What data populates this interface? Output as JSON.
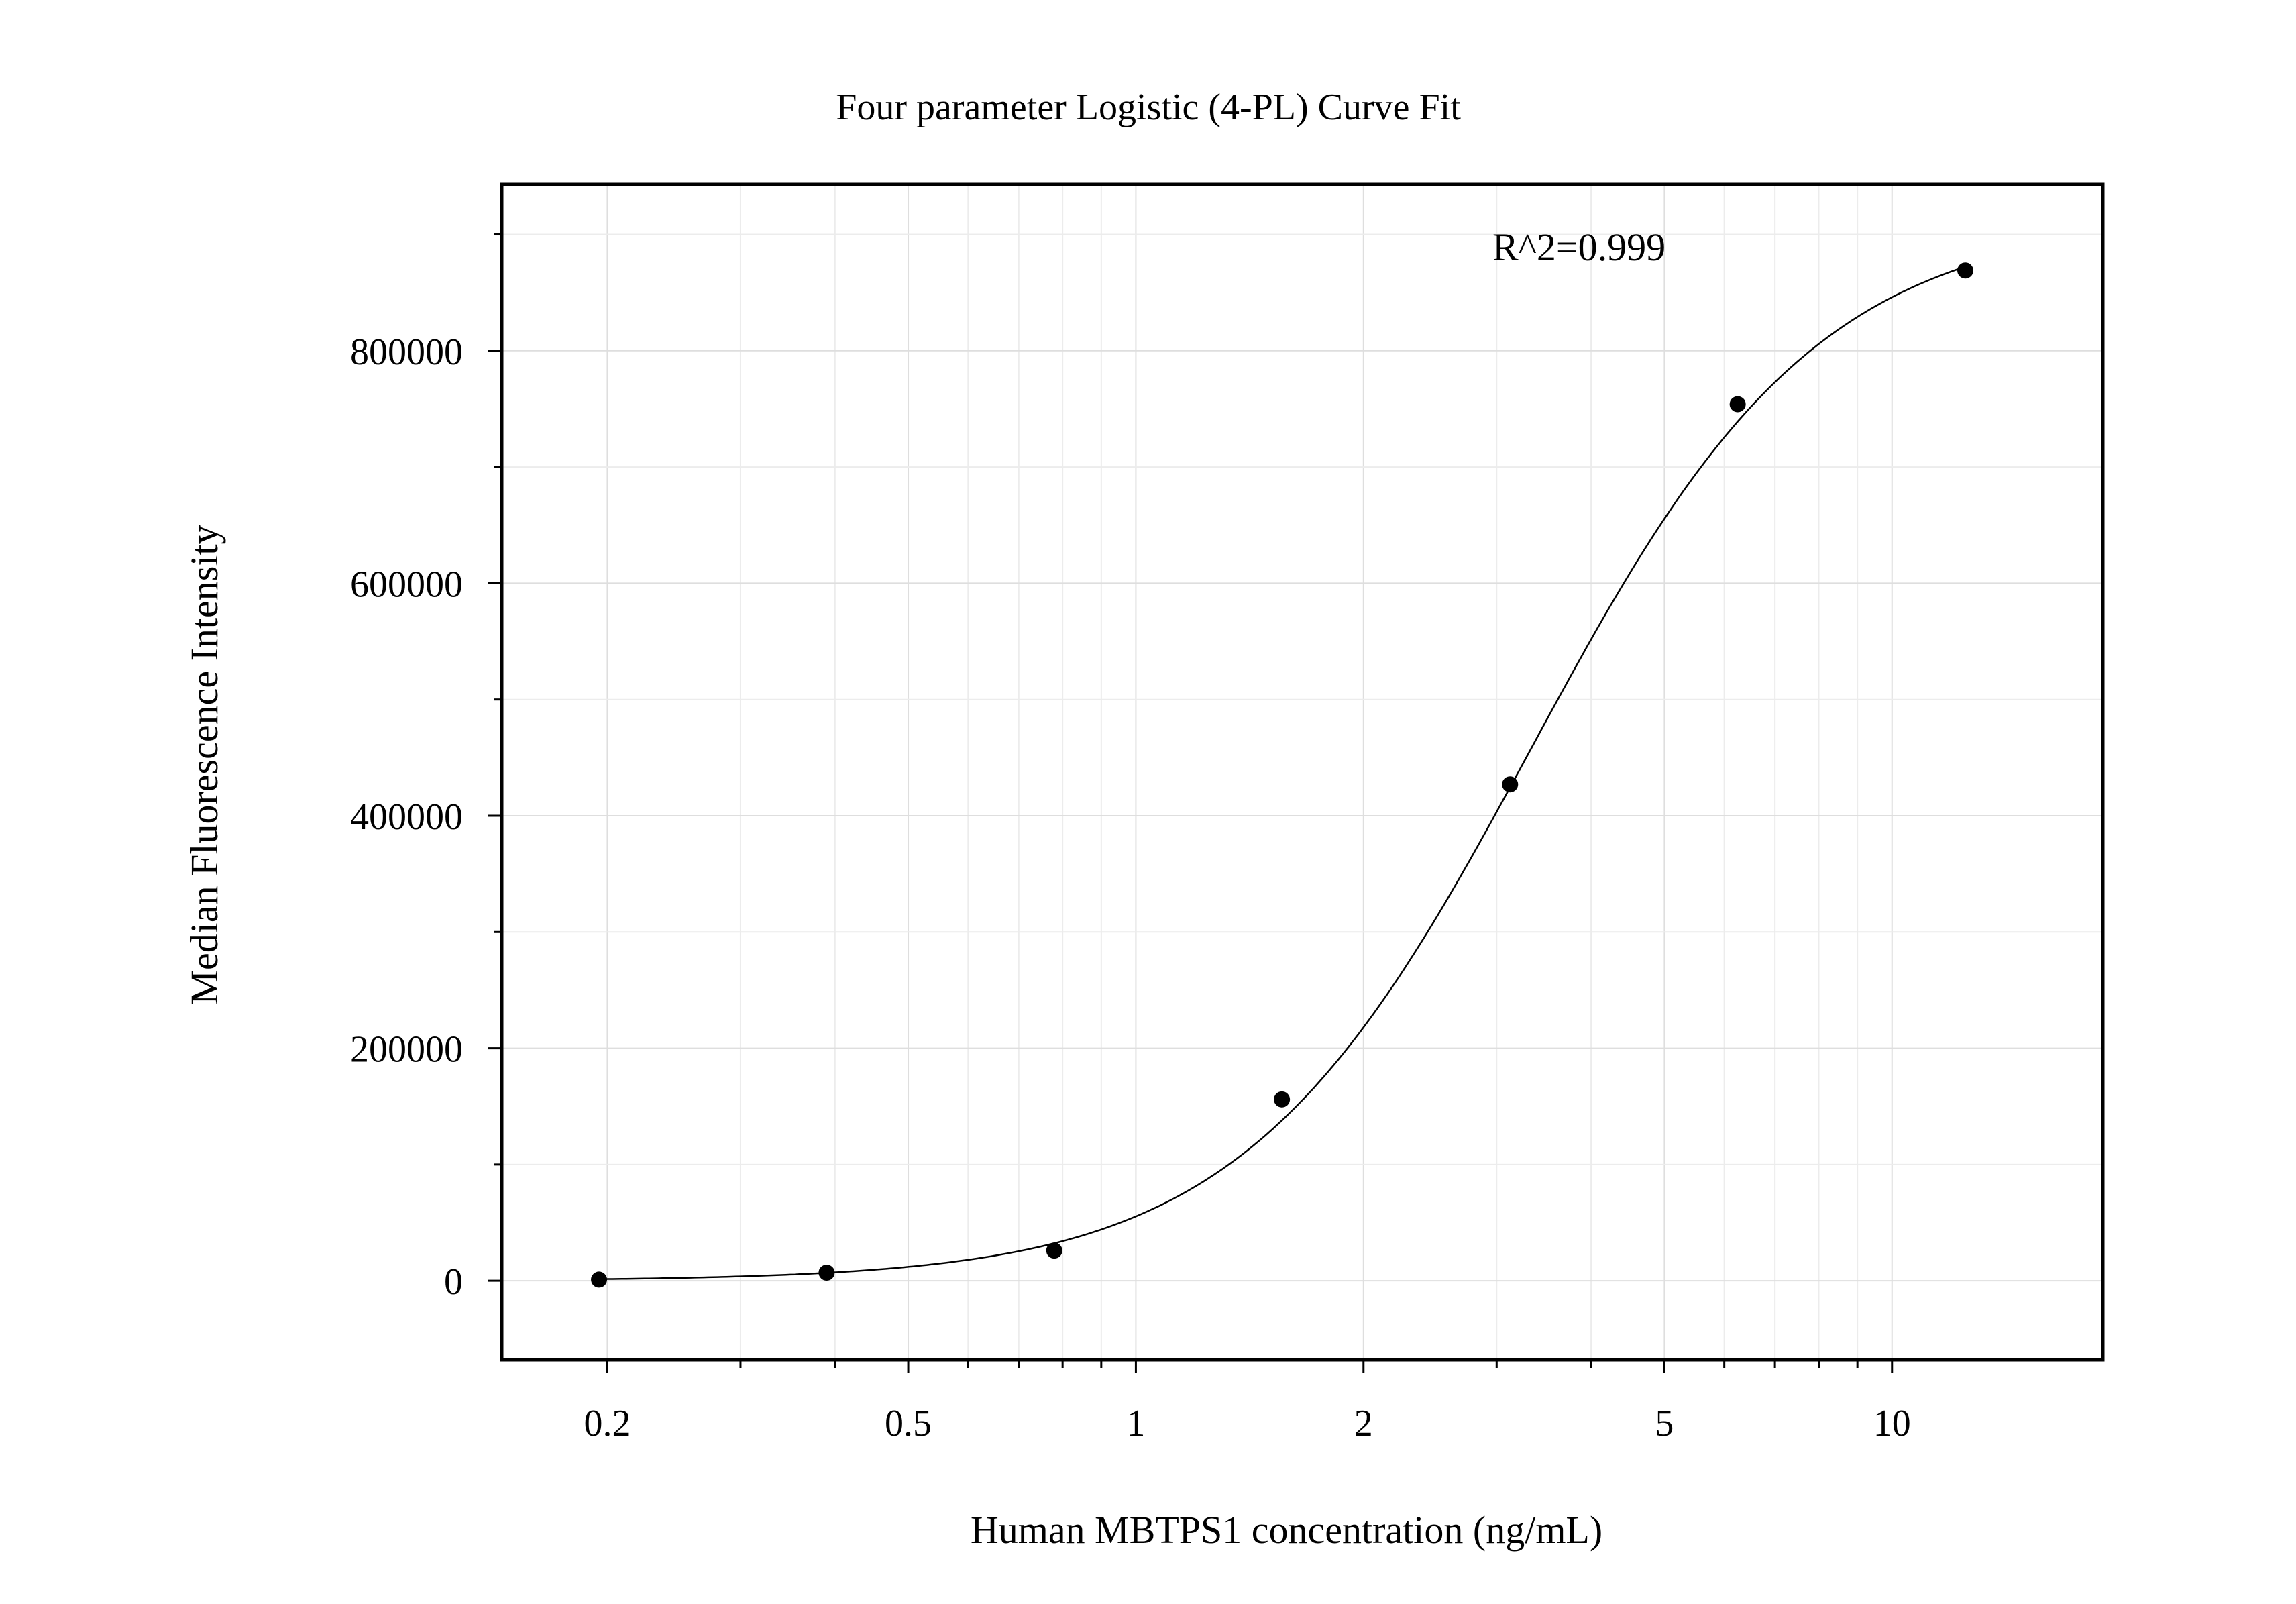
{
  "chart_data": {
    "type": "scatter",
    "title": "Four parameter Logistic (4-PL) Curve Fit",
    "xlabel": "Human MBTPS1 concentration (ng/mL)",
    "ylabel": "Median Fluorescence Intensity",
    "annotation": "R^2=0.999",
    "x_scale": "log",
    "xlim": [
      0.145,
      19.0
    ],
    "ylim": [
      -68000,
      943000
    ],
    "x_ticks": [
      0.2,
      0.5,
      1,
      2,
      5,
      10
    ],
    "x_tick_labels": [
      "0.2",
      "0.5",
      "1",
      "2",
      "5",
      "10"
    ],
    "y_ticks": [
      0,
      200000,
      400000,
      600000,
      800000
    ],
    "y_tick_labels": [
      "0",
      "200000",
      "400000",
      "600000",
      "800000"
    ],
    "grid": true,
    "series": [
      {
        "points": [
          {
            "x": 0.195,
            "y": 1000
          },
          {
            "x": 0.39,
            "y": 7000
          },
          {
            "x": 0.78,
            "y": 26000
          },
          {
            "x": 1.56,
            "y": 156000
          },
          {
            "x": 3.125,
            "y": 427000
          },
          {
            "x": 6.25,
            "y": 754000
          },
          {
            "x": 12.5,
            "y": 869000
          }
        ],
        "color": "#000000"
      }
    ],
    "fit": {
      "model": "4PL",
      "bottom": 0,
      "top": 915000,
      "ec50": 3.33,
      "hill": 2.28,
      "x_range": [
        0.195,
        12.5
      ]
    }
  }
}
